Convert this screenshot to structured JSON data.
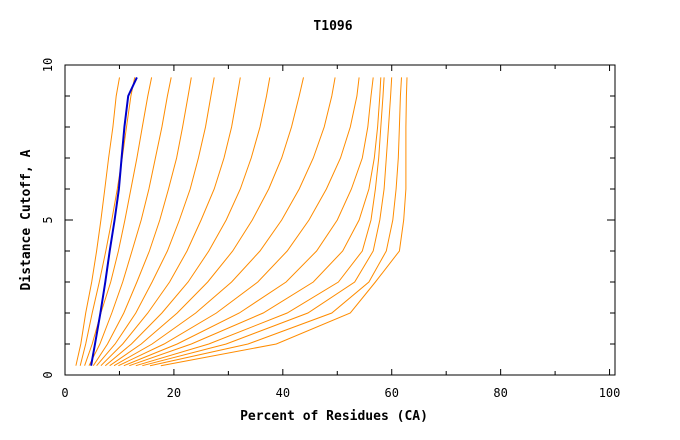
{
  "chart_data": {
    "type": "line",
    "title": "T1096",
    "xlabel": "Percent of Residues (CA)",
    "ylabel": "Distance Cutoff, A",
    "xlim": [
      0,
      101
    ],
    "ylim": [
      0,
      10
    ],
    "x_ticks": [
      "0",
      "20",
      "40",
      "60",
      "80",
      "100"
    ],
    "y_ticks": [
      "0",
      "5",
      "10"
    ],
    "y_levels": [
      0.3,
      1,
      2,
      3,
      4,
      5,
      6,
      7,
      8,
      9,
      9.6
    ],
    "colors": {
      "models": "#ff8c00",
      "highlight": "#0000cc",
      "frame": "#000000"
    },
    "grid": false,
    "series": [
      {
        "highlight": true,
        "x": [
          4.8,
          5.5,
          6.5,
          7.4,
          8.2,
          9.1,
          9.9,
          10.4,
          10.9,
          11.6,
          13.2
        ]
      },
      {
        "x": [
          2.0,
          2.9,
          3.8,
          4.9,
          5.8,
          6.6,
          7.3,
          8.0,
          8.8,
          9.4,
          10.0
        ]
      },
      {
        "x": [
          2.8,
          3.8,
          5.0,
          6.3,
          7.5,
          8.6,
          9.6,
          10.5,
          11.3,
          12.1,
          12.8
        ]
      },
      {
        "x": [
          3.6,
          5.0,
          6.6,
          8.4,
          9.8,
          11.0,
          12.1,
          13.2,
          14.2,
          15.2,
          15.9
        ]
      },
      {
        "x": [
          4.4,
          6.4,
          8.6,
          10.6,
          12.3,
          14.0,
          15.4,
          16.6,
          17.8,
          18.8,
          19.5
        ]
      },
      {
        "x": [
          5.2,
          7.8,
          10.8,
          13.2,
          15.5,
          17.4,
          19.0,
          20.5,
          21.6,
          22.6,
          23.2
        ]
      },
      {
        "x": [
          5.8,
          9.2,
          13.0,
          16.0,
          18.8,
          21.0,
          23.0,
          24.5,
          25.8,
          26.8,
          27.4
        ]
      },
      {
        "x": [
          6.6,
          10.6,
          15.2,
          19.2,
          22.4,
          25.0,
          27.4,
          29.2,
          30.6,
          31.6,
          32.2
        ]
      },
      {
        "x": [
          7.4,
          12.2,
          17.8,
          22.6,
          26.4,
          29.6,
          32.2,
          34.2,
          35.8,
          37.0,
          37.6
        ]
      },
      {
        "x": [
          8.2,
          14.0,
          20.6,
          26.2,
          30.8,
          34.4,
          37.4,
          39.8,
          41.6,
          43.0,
          43.8
        ]
      },
      {
        "x": [
          9.0,
          16.0,
          24.0,
          30.6,
          35.8,
          39.8,
          43.0,
          45.6,
          47.6,
          49.0,
          49.6
        ]
      },
      {
        "x": [
          9.8,
          18.2,
          27.8,
          35.4,
          40.8,
          44.8,
          48.0,
          50.6,
          52.4,
          53.6,
          54.0
        ]
      },
      {
        "x": [
          10.8,
          20.6,
          32.0,
          40.6,
          46.2,
          50.0,
          52.6,
          54.6,
          55.6,
          56.2,
          56.6
        ]
      },
      {
        "x": [
          11.8,
          23.2,
          36.4,
          45.6,
          51.0,
          54.0,
          55.8,
          56.8,
          57.4,
          57.8,
          58.0
        ]
      },
      {
        "x": [
          13.0,
          26.4,
          40.8,
          50.2,
          54.6,
          56.2,
          57.0,
          57.6,
          58.0,
          58.4,
          58.6
        ]
      },
      {
        "x": [
          14.2,
          29.6,
          44.6,
          53.2,
          56.6,
          57.8,
          58.6,
          59.0,
          59.4,
          59.8,
          60.0
        ]
      },
      {
        "x": [
          15.6,
          33.6,
          49.0,
          55.8,
          59.0,
          60.2,
          60.8,
          61.2,
          61.4,
          61.6,
          61.8
        ]
      },
      {
        "x": [
          17.6,
          38.8,
          52.4,
          57.0,
          61.4,
          62.2,
          62.6,
          62.6,
          62.6,
          62.7,
          62.8
        ]
      }
    ]
  }
}
